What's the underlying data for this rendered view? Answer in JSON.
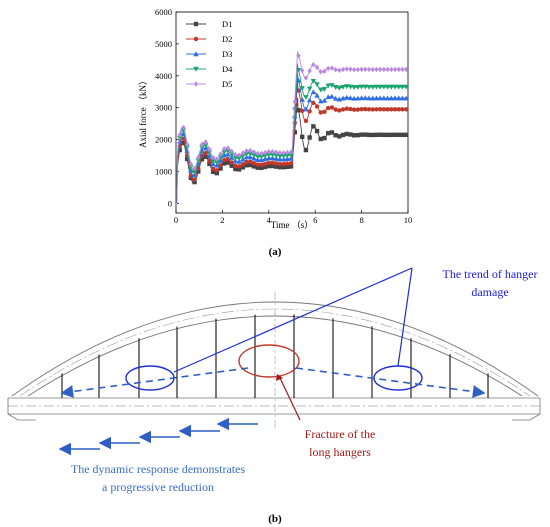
{
  "panel_a": {
    "label": "(a)"
  },
  "panel_b": {
    "label": "(b)",
    "annotations": {
      "trend_line1": "The trend of hanger",
      "trend_line2": "damage",
      "fracture_line1": "Fracture of the",
      "fracture_line2": "long hangers",
      "dynamic_line1": "The dynamic response demonstrates",
      "dynamic_line2": "a progressive reduction"
    },
    "colors": {
      "arrow_blue": "#2f5fc4",
      "ring_blue": "#1f2fd6",
      "ring_red": "#c0392b",
      "annotation_blue": "#1a1adb",
      "annotation_red": "#a01818",
      "annotation_lightblue": "#3a6fc4"
    }
  },
  "chart_data": {
    "type": "line",
    "xlabel": "Time （s）",
    "ylabel": "Axial force （kN）",
    "xlim": [
      0,
      10
    ],
    "ylim": [
      -300,
      6000
    ],
    "xticks": [
      0,
      2,
      4,
      6,
      8,
      10
    ],
    "yticks": [
      0,
      1000,
      2000,
      3000,
      4000,
      5000,
      6000
    ],
    "legend_position": "top-left",
    "series": [
      {
        "name": "D1",
        "color": "#444444",
        "marker": "square",
        "initial_peak": 2150,
        "plateau_before": 1150,
        "spike_peak": 3400,
        "final": 2150
      },
      {
        "name": "D2",
        "color": "#c0392b",
        "marker": "circle",
        "initial_peak": 2300,
        "plateau_before": 1250,
        "spike_peak": 3900,
        "final": 2950
      },
      {
        "name": "D3",
        "color": "#2f6fe0",
        "marker": "triangle",
        "initial_peak": 2450,
        "plateau_before": 1400,
        "spike_peak": 4200,
        "final": 3300
      },
      {
        "name": "D4",
        "color": "#1aa56e",
        "marker": "triangle-down",
        "initial_peak": 2550,
        "plateau_before": 1500,
        "spike_peak": 4500,
        "final": 3650
      },
      {
        "name": "D5",
        "color": "#b98ae0",
        "marker": "diamond",
        "initial_peak": 2650,
        "plateau_before": 1600,
        "spike_peak": 4900,
        "final": 4200
      }
    ]
  }
}
